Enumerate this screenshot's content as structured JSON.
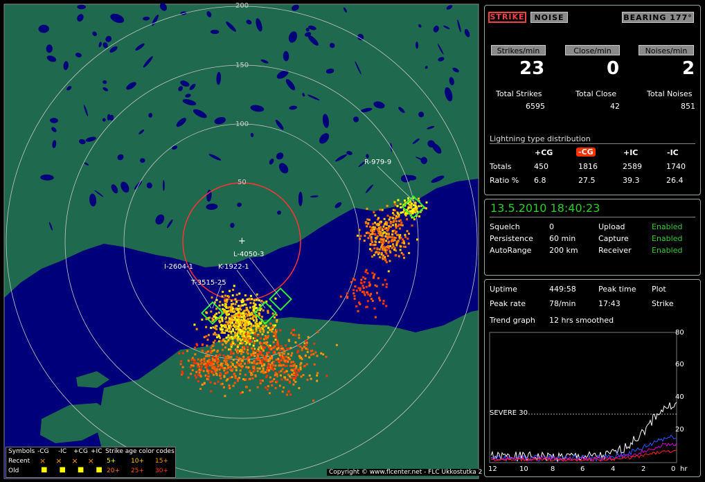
{
  "map": {
    "ring_labels": [
      "200",
      "150",
      "100",
      "50"
    ],
    "station_labels": [
      "R-979-9",
      "L-4050-3",
      "K-1922-1",
      "I-2604-1",
      "T-3515-25"
    ],
    "legend": {
      "symbols_header": "Symbols",
      "types": [
        "-CG",
        "-IC",
        "+CG",
        "+IC"
      ],
      "recent_label": "Recent",
      "old_label": "Old",
      "age_header": "Strike age color codes",
      "recent_ages": [
        "5+",
        "10+",
        "15+"
      ],
      "old_ages": [
        "20+",
        "25+",
        "30+"
      ],
      "recent_age_colors": [
        "#ffff00",
        "#ffcc00",
        "#ff9900"
      ],
      "old_age_colors": [
        "#ff7700",
        "#ff5500",
        "#ff3300"
      ]
    },
    "copyright": "Copyright © www.flcenter.net - FLC Ukkostutka 2",
    "colors": {
      "sea": "#00007a",
      "land": "#1f6a4e",
      "ring": "#c8c8c8",
      "range_ring": "#ff3333",
      "marker": "#33ee33"
    }
  },
  "top_panel": {
    "strike_btn": "STRIKE",
    "noise_btn": "NOISE",
    "bearing_btn": "BEARING 177°",
    "strikes_min_label": "Strikes/min",
    "close_min_label": "Close/min",
    "noises_min_label": "Noises/min",
    "strikes_min": "23",
    "close_min": "0",
    "noises_min": "2",
    "total_strikes_label": "Total Strikes",
    "total_close_label": "Total Close",
    "total_noises_label": "Total Noises",
    "total_strikes": "6595",
    "total_close": "42",
    "total_noises": "851",
    "dist_title": "Lightning type distribution",
    "dist_headers": [
      "+CG",
      "-CG",
      "+IC",
      "-IC"
    ],
    "totals_label": "Totals",
    "totals": [
      "450",
      "1816",
      "2589",
      "1740"
    ],
    "ratio_label": "Ratio %",
    "ratios": [
      "6.8",
      "27.5",
      "39.3",
      "26.4"
    ]
  },
  "status_panel": {
    "datetime": "13.5.2010 18:40:23",
    "squelch_label": "Squelch",
    "squelch": "0",
    "persistence_label": "Persistence",
    "persistence": "60 min",
    "autorange_label": "AutoRange",
    "autorange": "200 km",
    "upload_label": "Upload",
    "upload": "Enabled",
    "capture_label": "Capture",
    "capture": "Enabled",
    "receiver_label": "Receiver",
    "receiver": "Enabled"
  },
  "trend_panel": {
    "uptime_label": "Uptime",
    "uptime": "449:58",
    "peak_time_label": "Peak time",
    "peak_time": "17:43",
    "plot_label": "Plot",
    "plot": "Strike",
    "peak_rate_label": "Peak rate",
    "peak_rate": "78/min",
    "trend_label": "Trend graph",
    "trend": "12 hrs smoothed",
    "severe_label": "SEVERE 30",
    "y_ticks": [
      "80",
      "60",
      "40",
      "20"
    ],
    "x_ticks": [
      "12",
      "10",
      "8",
      "6",
      "4",
      "2",
      "0"
    ],
    "x_unit": "hr"
  }
}
